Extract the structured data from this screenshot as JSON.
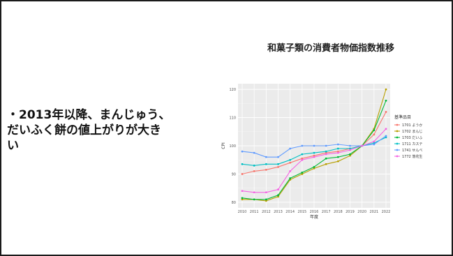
{
  "slide": {
    "bullet_text": "・2013年以降、まんじゅう、\nだいふく餅の値上がりが大き\nい"
  },
  "chart_data": {
    "type": "line",
    "title": "和菓子類の消費者物価指数推移",
    "xlabel": "年度",
    "ylabel": "CPI",
    "x": [
      2010,
      2011,
      2012,
      2013,
      2014,
      2015,
      2016,
      2017,
      2018,
      2019,
      2020,
      2021,
      2022
    ],
    "ylim": [
      78,
      122
    ],
    "yticks": [
      80,
      90,
      100,
      110,
      120
    ],
    "legend_title": "基準品目",
    "legend_position": "right",
    "grid": true,
    "series": [
      {
        "name": "1701 ようかん",
        "color": "#f8766d",
        "values": [
          90.0,
          91.0,
          91.5,
          92.5,
          94.0,
          95.5,
          96.5,
          97.5,
          98.0,
          99.0,
          100.0,
          104.0,
          112.0
        ]
      },
      {
        "name": "1702 まんじゅう",
        "color": "#b79f00",
        "values": [
          81.0,
          81.0,
          80.5,
          82.0,
          88.0,
          90.0,
          92.0,
          93.5,
          94.5,
          96.5,
          100.0,
          106.0,
          120.0
        ]
      },
      {
        "name": "1703 だいふく餅",
        "color": "#00ba38",
        "values": [
          81.5,
          81.0,
          81.0,
          82.5,
          88.5,
          90.5,
          92.5,
          95.5,
          96.0,
          97.0,
          100.0,
          105.5,
          116.0
        ]
      },
      {
        "name": "1711 カステラ",
        "color": "#00bfc4",
        "values": [
          93.5,
          93.0,
          93.5,
          93.5,
          95.0,
          97.0,
          97.5,
          98.0,
          99.0,
          99.0,
          100.0,
          101.0,
          103.0
        ]
      },
      {
        "name": "1741 せんべい",
        "color": "#619cff",
        "values": [
          98.0,
          97.5,
          96.0,
          96.0,
          99.0,
          100.0,
          100.0,
          100.0,
          100.5,
          100.0,
          100.0,
          100.5,
          103.5
        ]
      },
      {
        "name": "1772 落花生",
        "color": "#f564e3",
        "values": [
          84.0,
          83.5,
          83.5,
          84.5,
          91.0,
          95.0,
          96.0,
          97.0,
          97.5,
          98.5,
          100.0,
          101.5,
          106.0
        ]
      }
    ]
  }
}
